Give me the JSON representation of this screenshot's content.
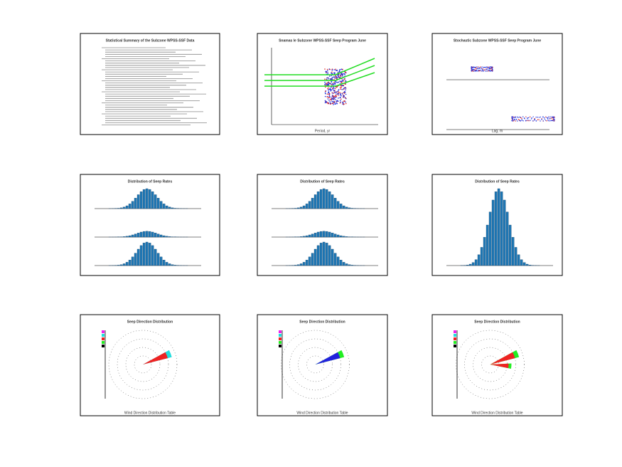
{
  "pages": [
    {
      "title": "Statistical Summary of the Subzone WPSS-SSF Data"
    },
    {
      "title": "Snamas le Subzone WPSS-SSF Seep Program June",
      "x_label": "Period, yr"
    },
    {
      "title": "Stochastic Subzone WPSS-SSF Seep Program June",
      "x_label": "Lag, m"
    },
    {
      "title": "Distribution of Seep Rates"
    },
    {
      "title": "Distribution of Seep Rates"
    },
    {
      "title": "Distribution of Seep Rates"
    },
    {
      "title": "Seep Direction Distribution",
      "caption": "Wind Direction Distribution Table"
    },
    {
      "title": "Seep Direction Distribution",
      "caption": "Wind Direction Distribution Table"
    },
    {
      "title": "Seep Direction Distribution",
      "caption": "Wind Direction Distribution Table"
    }
  ]
}
